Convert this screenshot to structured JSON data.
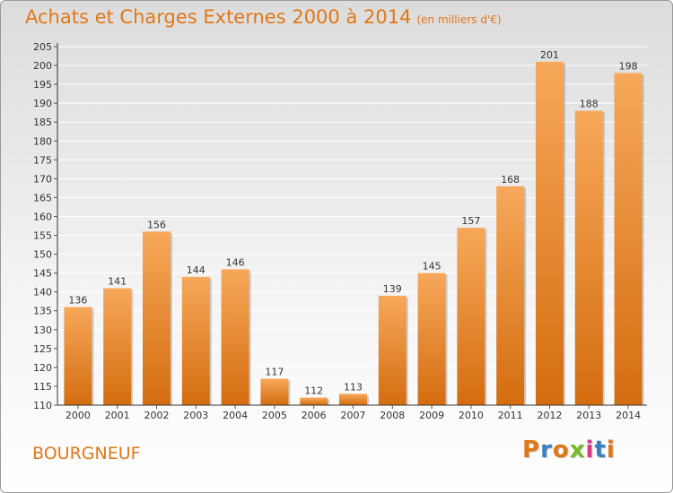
{
  "header": {
    "title": "Achats et Charges Externes 2000 à 2014",
    "unit": "(en milliers d'€)"
  },
  "footer": {
    "commune": "BOURGNEUF",
    "logo": "Proxiti"
  },
  "colors": {
    "bar_top": "#f7a85a",
    "bar_bottom": "#d46d10",
    "title": "#e07818",
    "logo_letters": [
      "#e07818",
      "#3a7fc1",
      "#e07818",
      "#7ab82c",
      "#d63a8a",
      "#3a7fc1",
      "#e07818"
    ]
  },
  "chart_data": {
    "type": "bar",
    "title": "Achats et Charges Externes 2000 à 2014",
    "subtitle": "(en milliers d'€)",
    "xlabel": "",
    "ylabel": "",
    "categories": [
      "2000",
      "2001",
      "2002",
      "2003",
      "2004",
      "2005",
      "2006",
      "2007",
      "2008",
      "2009",
      "2010",
      "2011",
      "2012",
      "2013",
      "2014"
    ],
    "values": [
      136,
      141,
      156,
      144,
      146,
      117,
      112,
      113,
      139,
      145,
      157,
      168,
      201,
      188,
      198
    ],
    "ylim": [
      110,
      205
    ],
    "ytick_step": 5,
    "grid": true,
    "legend": "none"
  }
}
